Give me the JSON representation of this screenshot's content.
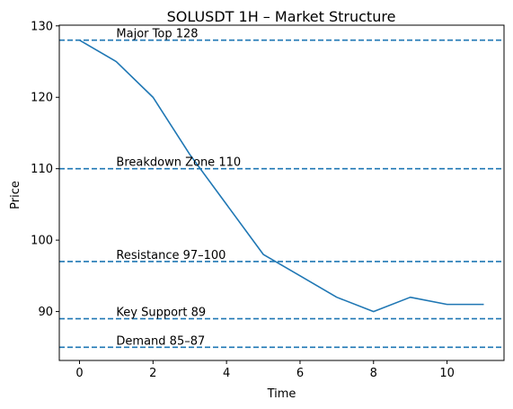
{
  "chart_data": {
    "type": "line",
    "title": "SOLUSDT 1H – Market Structure",
    "xlabel": "Time",
    "ylabel": "Price",
    "xlim": [
      -0.55,
      11.55
    ],
    "ylim": [
      83.15,
      130.1
    ],
    "xticks": [
      0,
      2,
      4,
      6,
      8,
      10
    ],
    "yticks": [
      90,
      100,
      110,
      120,
      130
    ],
    "grid": false,
    "series": [
      {
        "color": "#1f77b4",
        "x": [
          0,
          1,
          2,
          3,
          4,
          5,
          6,
          7,
          8,
          9,
          10,
          11
        ],
        "y": [
          128,
          125,
          120,
          112,
          105,
          98,
          95,
          92,
          90,
          92,
          91,
          91
        ]
      }
    ],
    "hlines": [
      {
        "y": 128,
        "label": "Major Top 128",
        "color": "#1f77b4",
        "style": "dashed"
      },
      {
        "y": 110,
        "label": "Breakdown Zone 110",
        "color": "#1f77b4",
        "style": "dashed"
      },
      {
        "y": 97,
        "label": "Resistance 97–100",
        "color": "#1f77b4",
        "style": "dashed"
      },
      {
        "y": 89,
        "label": "Key Support 89",
        "color": "#1f77b4",
        "style": "dashed"
      },
      {
        "y": 85,
        "label": "Demand 85–87",
        "color": "#1f77b4",
        "style": "dashed"
      }
    ],
    "annotation_x": 1
  }
}
